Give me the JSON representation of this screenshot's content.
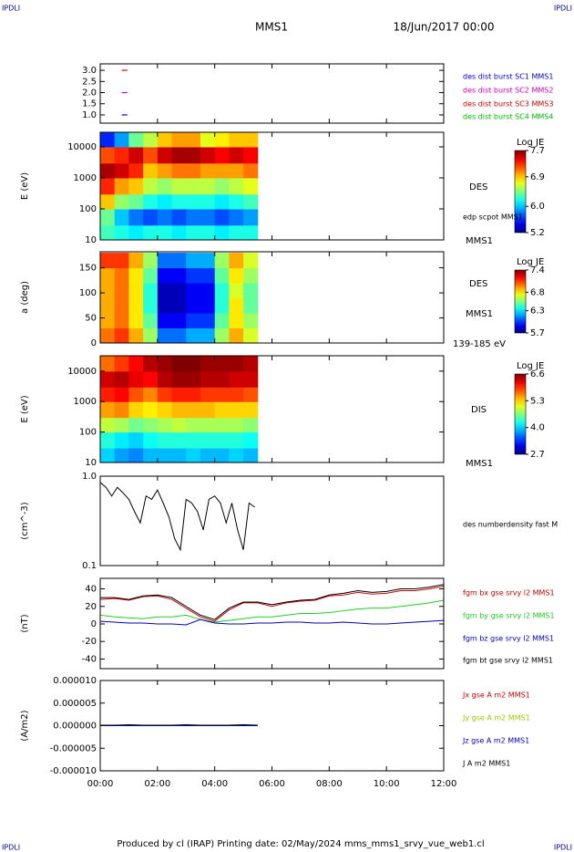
{
  "header": {
    "corner_tl": "IPDLI",
    "corner_tr": "IPDLI",
    "corner_bl": "IPDLI",
    "corner_br": "IPDLI",
    "title": "MMS1",
    "date": "18/Jun/2017 00:00"
  },
  "footer": "Produced by cl (IRAP)   Printing date: 02/May/2024   mms_mms1_srvy_vue_web1.cl",
  "chart_data": [
    {
      "type": "scatter",
      "xlim": [
        0,
        12
      ],
      "ylim": [
        0.63,
        3.29
      ],
      "yticks": [
        {
          "value": 1.0,
          "label": "1.0"
        },
        1.5,
        {
          "value": 2.0,
          "label": "2.0"
        },
        2.5,
        {
          "value": 3.0,
          "label": "3.0"
        }
      ],
      "series": [
        {
          "name": "des dist burst SC1 MMS1",
          "color": "#0000cc",
          "x": [
            0.85
          ],
          "values": [
            1.0
          ]
        },
        {
          "name": "des dist burst SC2 MMS2",
          "color": "#cc00cc",
          "x": [
            0.85
          ],
          "values": [
            2.0
          ]
        },
        {
          "name": "des dist burst SC3 MMS3",
          "color": "#cc0000",
          "x": [
            0.85
          ],
          "values": [
            3.0
          ]
        },
        {
          "name": "des dist burst SC4 MMS4",
          "color": "#00bb00",
          "x": [],
          "values": []
        }
      ]
    },
    {
      "type": "heatmap",
      "ylabel": "E (eV)",
      "xlim": [
        0,
        12
      ],
      "ylim": [
        10,
        29500
      ],
      "ylog": true,
      "yticks": [
        10,
        100,
        1000,
        10000
      ],
      "colorbar_title": "Log JE",
      "zlim": [
        5.2,
        7.7
      ],
      "zticks": [
        5.2,
        {
          "value": 6.0,
          "label": "6.0"
        },
        6.9,
        7.7
      ],
      "annotations": [
        "DES",
        "edp scpot MMS1",
        "MMS1"
      ],
      "x_edges": [
        0,
        0.5,
        1,
        1.5,
        2,
        2.5,
        3,
        3.5,
        4,
        4.5,
        5,
        5.5
      ],
      "y_edges": [
        10,
        30,
        100,
        300,
        1000,
        3000,
        10000,
        29500
      ],
      "z": [
        [
          6.3,
          6.2,
          6.1,
          6.2,
          6.2,
          6.1,
          6.2,
          6.2,
          6.1,
          6.2,
          6.2
        ],
        [
          6.4,
          6.0,
          5.8,
          5.7,
          5.8,
          5.7,
          5.8,
          5.8,
          5.7,
          5.8,
          5.9
        ],
        [
          6.9,
          6.5,
          6.4,
          6.2,
          6.1,
          6.2,
          6.2,
          6.2,
          6.1,
          6.2,
          6.3
        ],
        [
          7.3,
          7.0,
          6.9,
          6.6,
          6.5,
          6.6,
          6.6,
          6.6,
          6.5,
          6.6,
          6.7
        ],
        [
          7.6,
          7.5,
          7.3,
          6.9,
          7.0,
          7.1,
          7.1,
          7.0,
          7.0,
          7.0,
          7.1
        ],
        [
          7.2,
          7.3,
          7.5,
          7.2,
          7.5,
          7.6,
          7.6,
          7.5,
          7.4,
          7.5,
          7.4
        ],
        [
          5.6,
          5.9,
          6.4,
          6.6,
          6.9,
          7.0,
          7.0,
          6.7,
          6.8,
          6.9,
          6.9
        ]
      ]
    },
    {
      "type": "heatmap",
      "ylabel": "a (deg)",
      "xlim": [
        0,
        12
      ],
      "ylim": [
        0,
        182
      ],
      "ylog": false,
      "yticks": [
        0,
        50,
        100,
        150
      ],
      "colorbar_title": "Log JE",
      "zlim": [
        5.7,
        7.4
      ],
      "zticks": [
        5.7,
        6.3,
        6.8,
        7.4
      ],
      "annotations": [
        "DES",
        "MMS1",
        "139-185 eV"
      ],
      "x_edges": [
        0,
        0.5,
        1,
        1.5,
        2,
        2.5,
        3,
        3.5,
        4,
        4.5,
        5,
        5.5
      ],
      "y_edges": [
        0,
        30,
        60,
        90,
        120,
        150,
        180
      ],
      "z": [
        [
          7.0,
          7.1,
          6.9,
          6.6,
          6.1,
          6.1,
          6.2,
          6.2,
          6.6,
          6.9,
          6.7
        ],
        [
          6.9,
          7.0,
          6.8,
          6.5,
          5.9,
          5.9,
          6.0,
          6.0,
          6.5,
          6.8,
          6.6
        ],
        [
          6.9,
          7.0,
          6.8,
          6.4,
          5.8,
          5.8,
          5.9,
          5.9,
          6.4,
          6.8,
          6.5
        ],
        [
          6.9,
          7.0,
          6.8,
          6.4,
          5.8,
          5.8,
          5.9,
          5.9,
          6.4,
          6.7,
          6.5
        ],
        [
          6.9,
          7.0,
          6.8,
          6.5,
          5.9,
          5.9,
          6.0,
          6.0,
          6.5,
          6.8,
          6.6
        ],
        [
          7.1,
          7.1,
          6.9,
          6.6,
          6.1,
          6.1,
          6.2,
          6.2,
          6.6,
          6.9,
          6.7
        ]
      ]
    },
    {
      "type": "heatmap",
      "ylabel": "E (eV)",
      "xlim": [
        0,
        12
      ],
      "ylim": [
        10,
        32000
      ],
      "ylog": true,
      "yticks": [
        10,
        100,
        1000,
        10000
      ],
      "colorbar_title": "Log JE",
      "zlim": [
        2.7,
        6.6
      ],
      "zticks": [
        2.7,
        {
          "value": 4.0,
          "label": "4.0"
        },
        5.3,
        6.6
      ],
      "annotations": [
        "DIS",
        "MMS1"
      ],
      "x_edges": [
        0,
        0.5,
        1,
        1.5,
        2,
        2.5,
        3,
        3.5,
        4,
        4.5,
        5,
        5.5
      ],
      "y_edges": [
        10,
        30,
        100,
        300,
        1000,
        3000,
        10000,
        32000
      ],
      "z": [
        [
          4.0,
          3.8,
          3.7,
          3.9,
          3.9,
          3.9,
          4.0,
          3.9,
          3.9,
          4.0,
          3.9
        ],
        [
          4.3,
          4.1,
          4.0,
          4.2,
          4.3,
          4.3,
          4.3,
          4.3,
          4.3,
          4.3,
          4.2
        ],
        [
          4.9,
          4.8,
          4.6,
          4.7,
          4.8,
          4.9,
          4.8,
          4.8,
          4.8,
          4.8,
          4.7
        ],
        [
          5.5,
          5.6,
          5.3,
          5.2,
          5.3,
          5.4,
          5.4,
          5.4,
          5.3,
          5.3,
          5.3
        ],
        [
          6.0,
          6.1,
          5.8,
          5.6,
          5.9,
          6.0,
          6.0,
          5.9,
          5.9,
          5.9,
          5.8
        ],
        [
          6.3,
          6.4,
          6.2,
          6.1,
          6.4,
          6.5,
          6.5,
          6.4,
          6.4,
          6.3,
          6.3
        ],
        [
          5.7,
          5.9,
          6.1,
          6.4,
          6.5,
          6.6,
          6.6,
          6.5,
          6.5,
          6.5,
          6.4
        ]
      ]
    },
    {
      "type": "line",
      "ylabel": "(cm^-3)",
      "xlim": [
        0,
        12
      ],
      "ylim": [
        0.1,
        1.0
      ],
      "ylog": true,
      "yticks": [
        0.1,
        {
          "value": 1.0,
          "label": "1.0"
        }
      ],
      "x": [
        0,
        0.2,
        0.4,
        0.6,
        0.8,
        1.0,
        1.2,
        1.4,
        1.6,
        1.8,
        2.0,
        2.2,
        2.4,
        2.6,
        2.8,
        3.0,
        3.2,
        3.4,
        3.6,
        3.8,
        4.0,
        4.2,
        4.4,
        4.6,
        4.8,
        5.0,
        5.2,
        5.4
      ],
      "series": [
        {
          "name": "des numberdensity fast M",
          "color": "#000000",
          "values": [
            0.85,
            0.75,
            0.6,
            0.75,
            0.65,
            0.55,
            0.4,
            0.3,
            0.6,
            0.55,
            0.7,
            0.5,
            0.35,
            0.2,
            0.15,
            0.55,
            0.5,
            0.4,
            0.25,
            0.55,
            0.6,
            0.5,
            0.3,
            0.5,
            0.25,
            0.15,
            0.5,
            0.45
          ]
        }
      ]
    },
    {
      "type": "line",
      "ylabel": "(nT)",
      "xlim": [
        0,
        12
      ],
      "ylim": [
        -51,
        52
      ],
      "ylog": false,
      "yticks": [
        -40,
        -20,
        0,
        20,
        40
      ],
      "x": [
        0,
        0.5,
        1,
        1.5,
        2,
        2.5,
        3,
        3.5,
        4,
        4.5,
        5,
        5.5,
        6,
        6.5,
        7,
        7.5,
        8,
        8.5,
        9,
        9.5,
        10,
        10.5,
        11,
        11.5,
        12
      ],
      "series": [
        {
          "name": "fgm bx gse srvy l2 MMS1",
          "color": "#cc0000",
          "values": [
            28,
            29,
            27,
            31,
            32,
            28,
            18,
            8,
            3,
            16,
            24,
            24,
            20,
            24,
            26,
            27,
            32,
            33,
            36,
            34,
            35,
            38,
            38,
            40,
            43
          ]
        },
        {
          "name": "fgm by gse srvy l2 MMS1",
          "color": "#22cc22",
          "values": [
            10,
            8,
            7,
            6,
            8,
            8,
            10,
            5,
            2,
            4,
            6,
            8,
            8,
            10,
            12,
            12,
            13,
            15,
            17,
            18,
            18,
            20,
            22,
            24,
            27
          ]
        },
        {
          "name": "fgm bz gse srvy l2 MMS1",
          "color": "#0000bb",
          "values": [
            3,
            2,
            1,
            1,
            0,
            0,
            -1,
            5,
            1,
            0,
            0,
            1,
            1,
            2,
            2,
            1,
            1,
            2,
            1,
            0,
            0,
            1,
            2,
            3,
            4
          ]
        },
        {
          "name": "fgm bt gse srvy l2 MMS1",
          "color": "#000000",
          "values": [
            30,
            30,
            28,
            32,
            33,
            30,
            20,
            10,
            5,
            18,
            25,
            25,
            22,
            25,
            27,
            28,
            33,
            35,
            38,
            36,
            37,
            40,
            40,
            42,
            45
          ]
        }
      ]
    },
    {
      "type": "line",
      "ylabel": "(A/m2)",
      "xlim": [
        0,
        12
      ],
      "ylim": [
        -1e-05,
        1e-05
      ],
      "ylog": false,
      "yticks": [
        {
          "value": -1e-05,
          "label": "-0.000010"
        },
        {
          "value": -5e-06,
          "label": "-0.000005"
        },
        {
          "value": 0,
          "label": "0.000000"
        },
        {
          "value": 5e-06,
          "label": "0.000005"
        },
        {
          "value": 1e-05,
          "label": "0.000010"
        }
      ],
      "xticks": [
        {
          "value": 0,
          "label": "00:00"
        },
        {
          "value": 2,
          "label": "02:00"
        },
        {
          "value": 4,
          "label": "04:00"
        },
        {
          "value": 6,
          "label": "06:00"
        },
        {
          "value": 8,
          "label": "08:00"
        },
        {
          "value": 10,
          "label": "10:00"
        },
        {
          "value": 12,
          "label": "12:00"
        }
      ],
      "x": [
        0,
        0.5,
        1,
        1.5,
        2,
        2.5,
        3,
        3.5,
        4,
        4.5,
        5,
        5.5
      ],
      "series": [
        {
          "name": "Jx gse A m2 MMS1",
          "color": "#cc0000",
          "values": [
            0,
            0,
            0,
            0,
            0,
            0,
            0,
            0,
            0,
            0,
            0,
            0
          ]
        },
        {
          "name": "Jy gse A m2 MMS1",
          "color": "#99cc00",
          "values": [
            0,
            0,
            0,
            0,
            0,
            0,
            0,
            0,
            0,
            0,
            0,
            0
          ]
        },
        {
          "name": "Jz gse A m2 MMS1",
          "color": "#0000bb",
          "values": [
            0,
            0,
            0,
            0,
            0,
            0,
            0,
            0,
            0,
            0,
            0,
            0
          ]
        },
        {
          "name": "J A m2 MMS1",
          "color": "#000000",
          "values": [
            1e-07,
            1e-07,
            2e-07,
            1e-07,
            1e-07,
            1e-07,
            2e-07,
            1e-07,
            1e-07,
            1e-07,
            2e-07,
            1e-07
          ]
        }
      ]
    }
  ]
}
